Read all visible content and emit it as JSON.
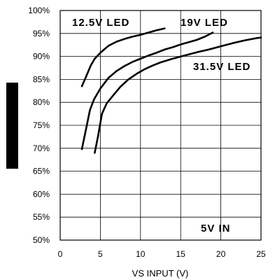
{
  "chart_data": {
    "type": "line",
    "xlabel": "VS INPUT (V)",
    "ylabel": "",
    "xlim": [
      0,
      25
    ],
    "ylim": [
      50,
      100
    ],
    "xticks": [
      0,
      5,
      10,
      15,
      20,
      25
    ],
    "yticks": [
      50,
      55,
      60,
      65,
      70,
      75,
      80,
      85,
      90,
      95,
      100
    ],
    "ytick_labels": [
      "50%",
      "55%",
      "60%",
      "65%",
      "70%",
      "75%",
      "80%",
      "85%",
      "90%",
      "95%",
      "100%"
    ],
    "grid": true,
    "annotation": "5V IN",
    "series": [
      {
        "name": "12.5V LED",
        "x": [
          2.7,
          3.2,
          3.8,
          4.3,
          5.0,
          6.0,
          7.0,
          8.0,
          9.0,
          10.0,
          11.0,
          12.0,
          13.0
        ],
        "y": [
          83.5,
          85.5,
          88.0,
          89.5,
          90.8,
          92.3,
          93.2,
          93.8,
          94.3,
          94.7,
          95.2,
          95.7,
          96.1
        ]
      },
      {
        "name": "19V LED",
        "x": [
          2.7,
          3.2,
          3.7,
          4.2,
          5.0,
          6.0,
          7.0,
          8.0,
          9.0,
          10.0,
          11.0,
          12.0,
          13.0,
          14.0,
          15.0,
          16.0,
          17.0,
          18.0,
          19.0
        ],
        "y": [
          69.8,
          74.0,
          78.3,
          80.6,
          83.0,
          85.3,
          86.8,
          87.9,
          88.8,
          89.5,
          90.2,
          90.8,
          91.5,
          92.0,
          92.6,
          93.1,
          93.6,
          94.3,
          95.2
        ]
      },
      {
        "name": "31.5V LED",
        "x": [
          4.3,
          4.7,
          5.2,
          5.8,
          6.5,
          7.5,
          8.5,
          9.5,
          10.5,
          11.5,
          12.5,
          14.0,
          15.5,
          17.0,
          18.5,
          20.0,
          21.5,
          23.0,
          24.5,
          25.0
        ],
        "y": [
          69.0,
          72.5,
          77.5,
          79.8,
          81.3,
          83.4,
          85.0,
          86.2,
          87.2,
          88.0,
          88.7,
          89.5,
          90.2,
          90.9,
          91.5,
          92.2,
          92.9,
          93.5,
          94.0,
          94.1
        ]
      }
    ]
  }
}
